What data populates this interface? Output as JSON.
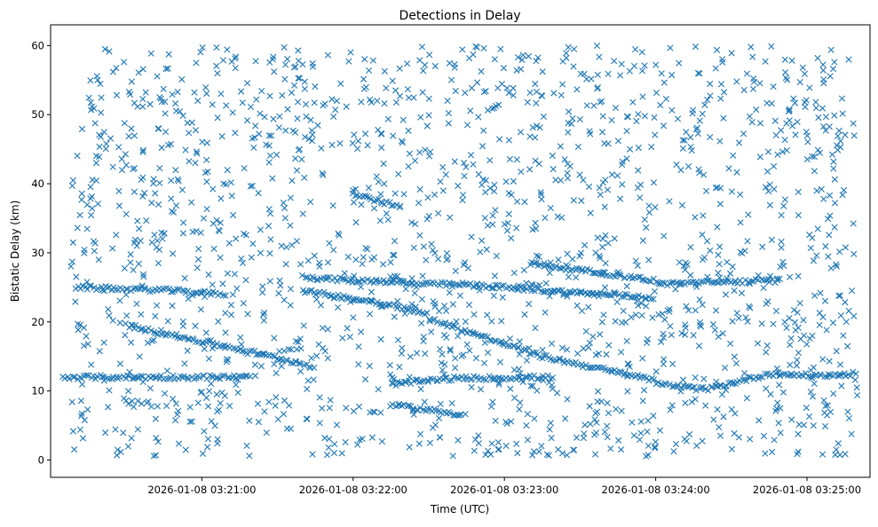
{
  "chart_data": {
    "type": "scatter",
    "title": "Detections in Delay",
    "xlabel": "Time (UTC)",
    "ylabel": "Bistatic Delay (km)",
    "x_is_time": true,
    "x_range": [
      "2026-01-08 03:20:00",
      "2026-01-08 03:25:25"
    ],
    "ylim": [
      -2.5,
      63
    ],
    "x_ticks": [
      "2026-01-08 03:21:00",
      "2026-01-08 03:22:00",
      "2026-01-08 03:23:00",
      "2026-01-08 03:24:00",
      "2026-01-08 03:25:00"
    ],
    "y_ticks": [
      "0",
      "10",
      "20",
      "30",
      "40",
      "50",
      "60"
    ],
    "y_tick_values": [
      0,
      10,
      20,
      30,
      40,
      50,
      60
    ],
    "marker": "x",
    "color": "#1f77b4",
    "grid": false,
    "legend": "none",
    "series": [
      {
        "description_of_structure": "Dense clutter of random detections uniformly spread over 03:20:10-03:25:20 and 0-60 km, plus near-continuous tracks",
        "tracks": [
          {
            "x": [
              "2026-01-08 03:20:10",
              "2026-01-08 03:20:45",
              "2026-01-08 03:21:10"
            ],
            "y": [
              25,
              24.6,
              24
            ]
          },
          {
            "x": [
              "2026-01-08 03:21:40",
              "2026-01-08 03:22:00",
              "2026-01-08 03:22:20"
            ],
            "y": [
              26.5,
              26,
              25.8
            ]
          },
          {
            "x": [
              "2026-01-08 03:22:20",
              "2026-01-08 03:22:45",
              "2026-01-08 03:23:00"
            ],
            "y": [
              25.5,
              25.4,
              25
            ]
          },
          {
            "x": [
              "2026-01-08 03:23:00",
              "2026-01-08 03:23:30",
              "2026-01-08 03:24:00"
            ],
            "y": [
              25,
              24.2,
              23.5
            ]
          },
          {
            "x": [
              "2026-01-08 03:23:10",
              "2026-01-08 03:23:40",
              "2026-01-08 03:24:00"
            ],
            "y": [
              28.5,
              27,
              26
            ]
          },
          {
            "x": [
              "2026-01-08 03:24:00",
              "2026-01-08 03:24:30",
              "2026-01-08 03:24:50"
            ],
            "y": [
              25.5,
              25.8,
              26
            ]
          },
          {
            "x": [
              "2026-01-08 03:20:30",
              "2026-01-08 03:21:15",
              "2026-01-08 03:21:45"
            ],
            "y": [
              19.5,
              16,
              13.5
            ]
          },
          {
            "x": [
              "2026-01-08 03:21:40",
              "2026-01-08 03:22:15",
              "2026-01-08 03:22:30"
            ],
            "y": [
              24.5,
              22.5,
              21
            ]
          },
          {
            "x": [
              "2026-01-08 03:22:30",
              "2026-01-08 03:23:15",
              "2026-01-08 03:24:00"
            ],
            "y": [
              20.5,
              15,
              11.5
            ]
          },
          {
            "x": [
              "2026-01-08 03:20:05",
              "2026-01-08 03:20:45",
              "2026-01-08 03:21:20"
            ],
            "y": [
              12,
              12,
              12
            ]
          },
          {
            "x": [
              "2026-01-08 03:22:15",
              "2026-01-08 03:22:40",
              "2026-01-08 03:23:20"
            ],
            "y": [
              11,
              11.8,
              12
            ]
          },
          {
            "x": [
              "2026-01-08 03:24:00",
              "2026-01-08 03:24:20",
              "2026-01-08 03:24:45"
            ],
            "y": [
              11,
              10.2,
              12.5
            ]
          },
          {
            "x": [
              "2026-01-08 03:24:45",
              "2026-01-08 03:25:05",
              "2026-01-08 03:25:20"
            ],
            "y": [
              12.5,
              12.2,
              12.5
            ]
          },
          {
            "x": [
              "2026-01-08 03:22:15",
              "2026-01-08 03:22:35",
              "2026-01-08 03:22:45"
            ],
            "y": [
              8,
              7,
              6.5
            ]
          },
          {
            "x": [
              "2026-01-08 03:22:00",
              "2026-01-08 03:22:10",
              "2026-01-08 03:22:20"
            ],
            "y": [
              38.5,
              37.5,
              36.5
            ]
          }
        ]
      }
    ]
  }
}
